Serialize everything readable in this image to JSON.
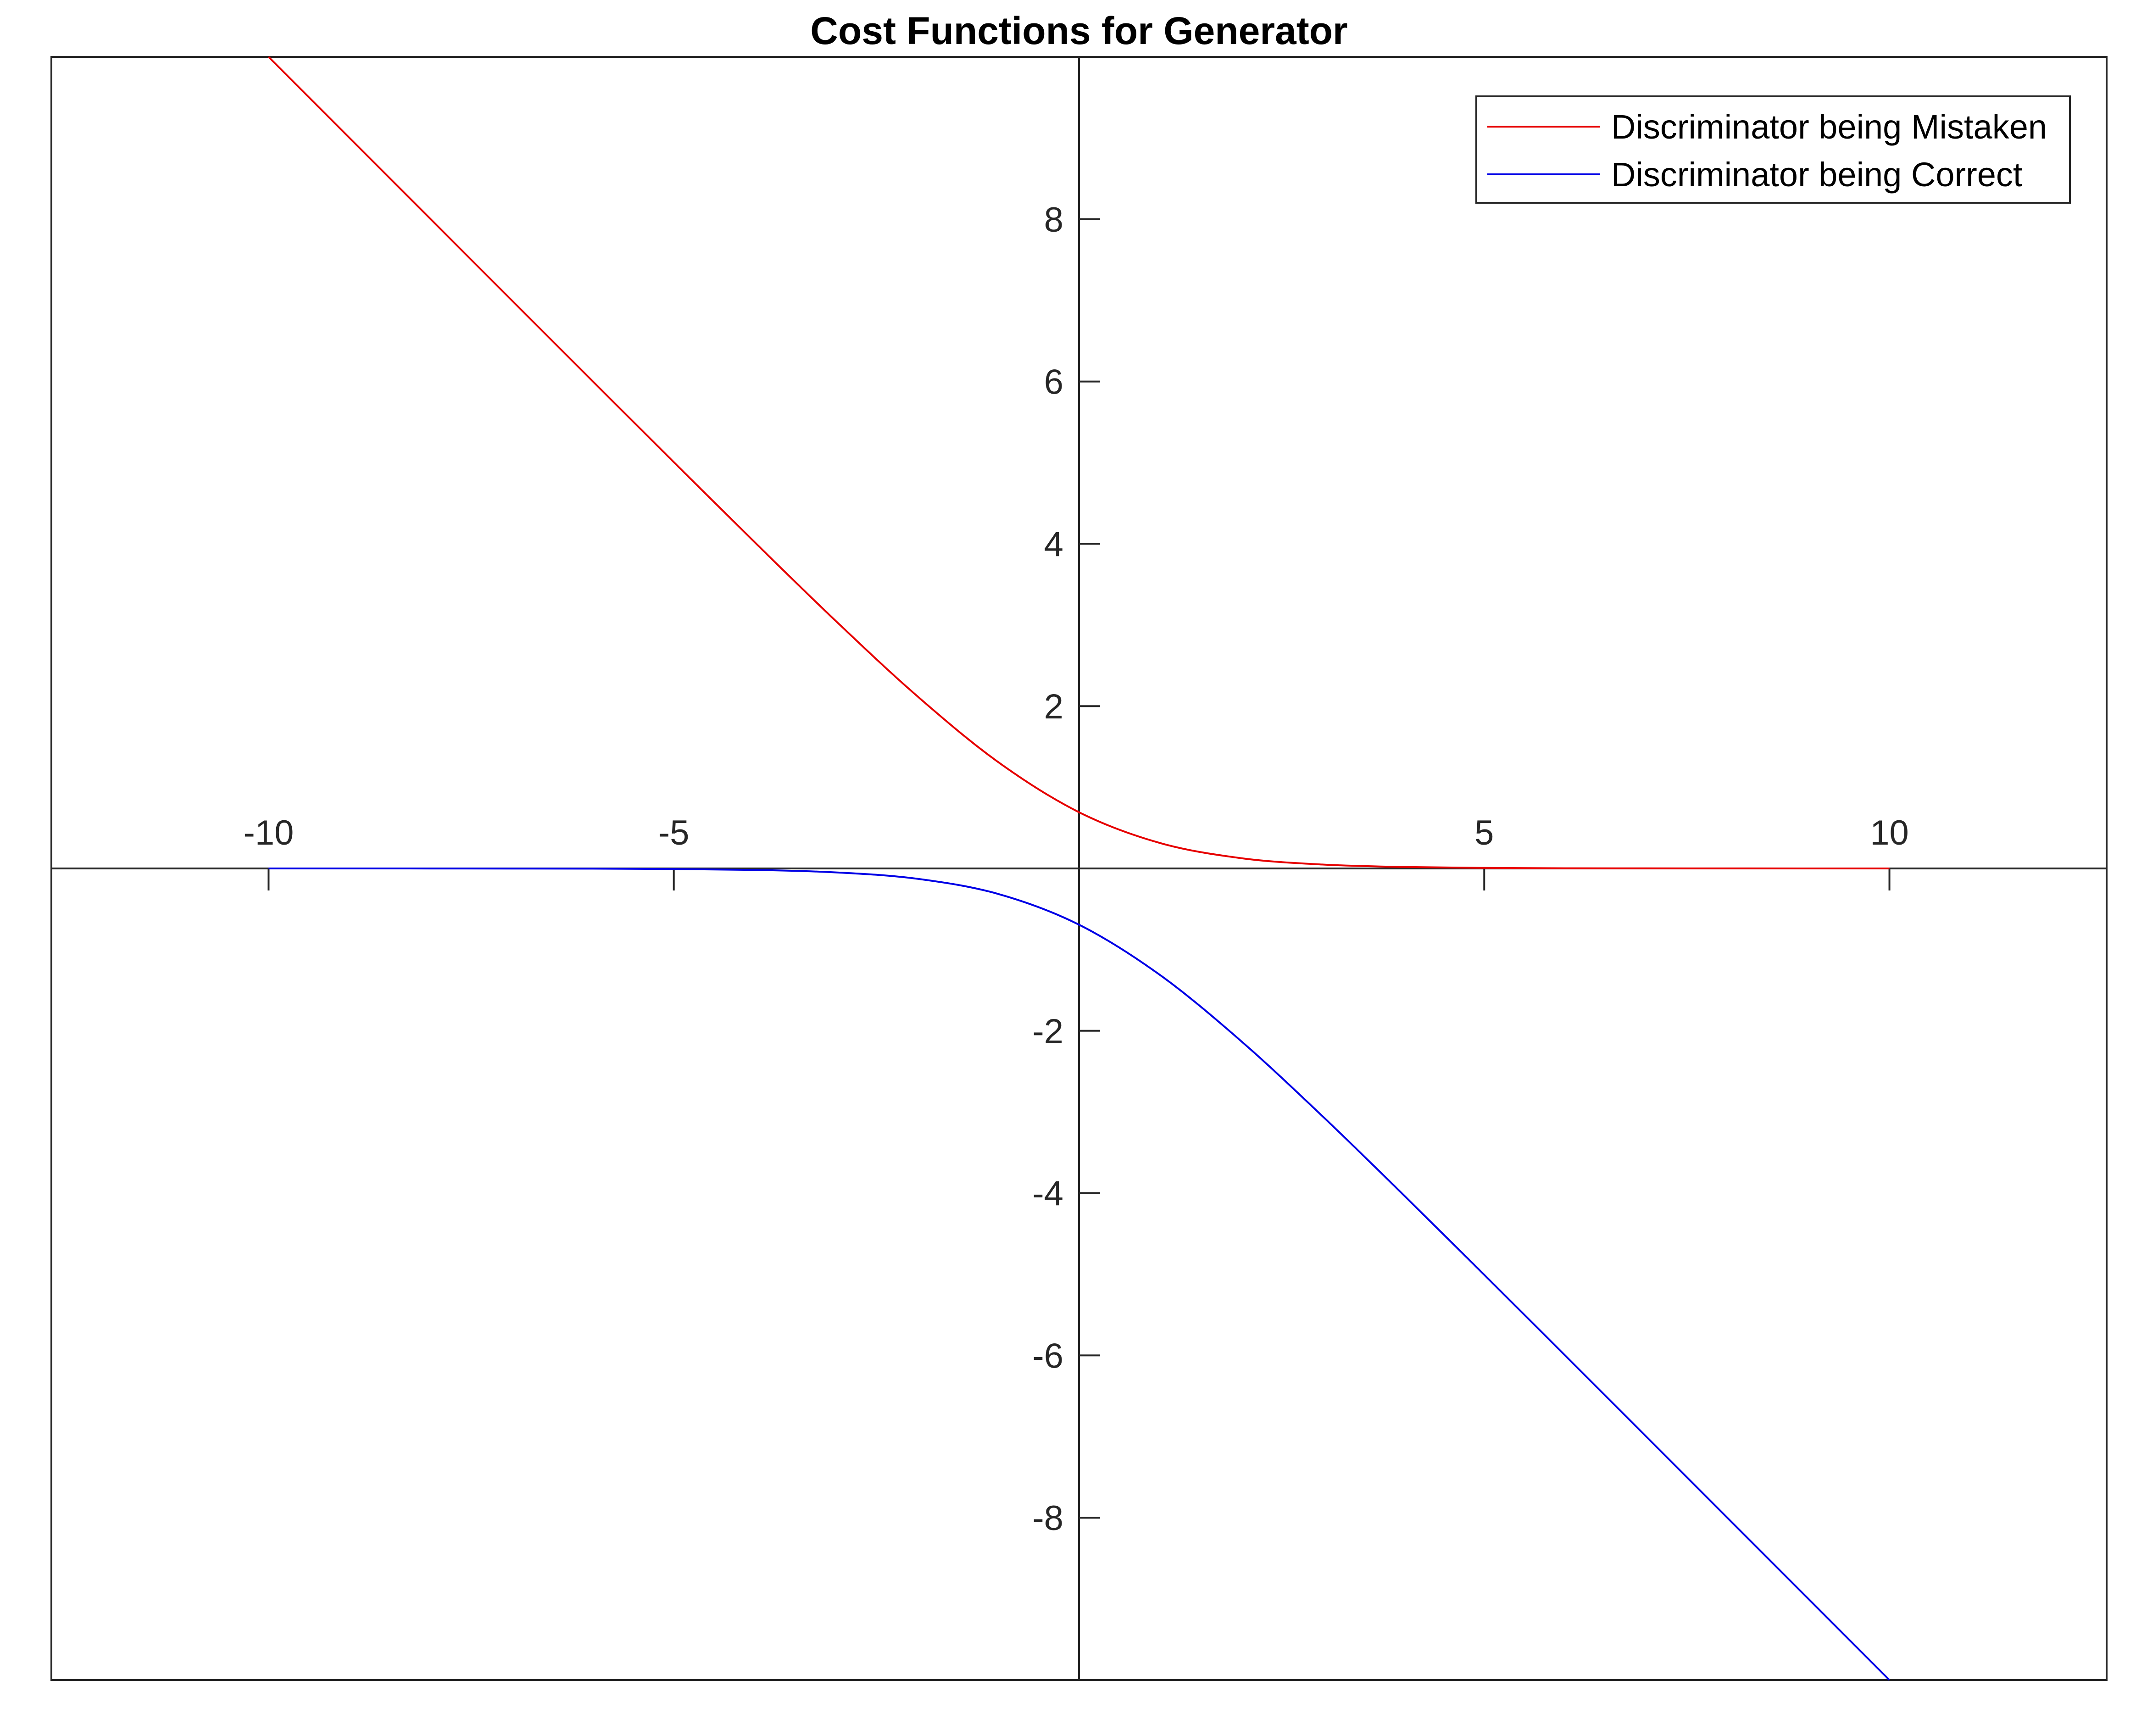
{
  "chart_data": {
    "type": "line",
    "title": "Cost Functions for Generator",
    "xlabel": "",
    "ylabel": "",
    "xlim": [
      -12.68,
      12.68
    ],
    "ylim": [
      -10,
      10
    ],
    "xticks": [
      -10,
      -5,
      5,
      10
    ],
    "xtick_labels": [
      "-10",
      "-5",
      "5",
      "10"
    ],
    "yticks": [
      -8,
      -6,
      -4,
      -2,
      2,
      4,
      6,
      8
    ],
    "ytick_labels": [
      "-8",
      "-6",
      "-4",
      "-2",
      "2",
      "4",
      "6",
      "8"
    ],
    "axis_location": "origin",
    "grid": false,
    "legend_position": "top-right",
    "x": [
      -10,
      -9,
      -8,
      -7,
      -6,
      -5,
      -4,
      -3,
      -2,
      -1,
      0,
      1,
      2,
      3,
      4,
      5,
      6,
      7,
      8,
      9,
      10
    ],
    "series": [
      {
        "name": "Discriminator being Mistaken",
        "color": "#e60000",
        "values": [
          10.0,
          9.0001,
          8.0003,
          7.0009,
          6.0025,
          5.0067,
          4.0181,
          3.0486,
          2.1269,
          1.3133,
          0.6931,
          0.3133,
          0.1269,
          0.0486,
          0.0181,
          0.0067,
          0.0025,
          0.0009,
          0.0003,
          0.0001,
          0.0
        ]
      },
      {
        "name": "Discriminator being Correct",
        "color": "#0000e6",
        "values": [
          0.0,
          -0.0001,
          -0.0003,
          -0.0009,
          -0.0025,
          -0.0067,
          -0.0181,
          -0.0486,
          -0.1269,
          -0.3133,
          -0.6931,
          -1.3133,
          -2.1269,
          -3.0486,
          -4.0181,
          -5.0067,
          -6.0025,
          -7.0009,
          -8.0003,
          -9.0001,
          -10.0
        ]
      }
    ]
  }
}
